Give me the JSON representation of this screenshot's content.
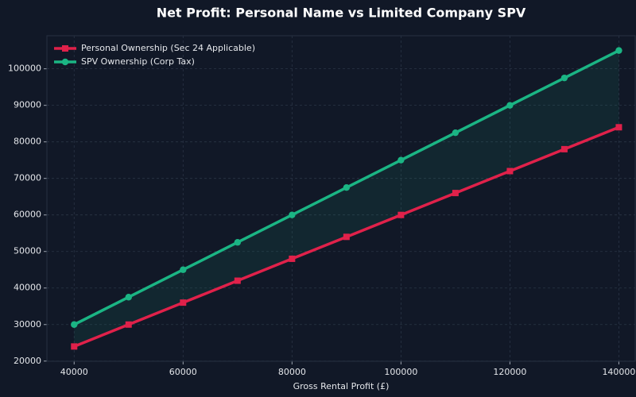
{
  "chart_data": {
    "type": "line",
    "title": "Net Profit: Personal Name vs Limited Company SPV",
    "x_label": "Gross Rental Profit (£)",
    "x": [
      40000,
      50000,
      60000,
      70000,
      80000,
      90000,
      100000,
      110000,
      120000,
      130000,
      140000
    ],
    "series": [
      {
        "name": "Personal Ownership (Sec 24 Applicable)",
        "color": "#e0214a",
        "marker": "square",
        "values": [
          24000,
          30000,
          36000,
          42000,
          48000,
          54000,
          60000,
          66000,
          72000,
          78000,
          84000
        ]
      },
      {
        "name": "SPV Ownership (Corp Tax)",
        "color": "#1bb584",
        "marker": "circle",
        "values": [
          30000,
          37500,
          45000,
          52500,
          60000,
          67500,
          75000,
          82500,
          90000,
          97500,
          105000
        ]
      }
    ],
    "xlim": [
      35000,
      143000
    ],
    "xticks": [
      40000,
      60000,
      80000,
      100000,
      120000,
      140000
    ],
    "ylim": [
      19950,
      109050
    ],
    "yticks": [
      20000,
      30000,
      40000,
      50000,
      60000,
      70000,
      80000,
      90000,
      100000
    ],
    "grid": true,
    "legend": "upper-left",
    "fill_between": true
  }
}
